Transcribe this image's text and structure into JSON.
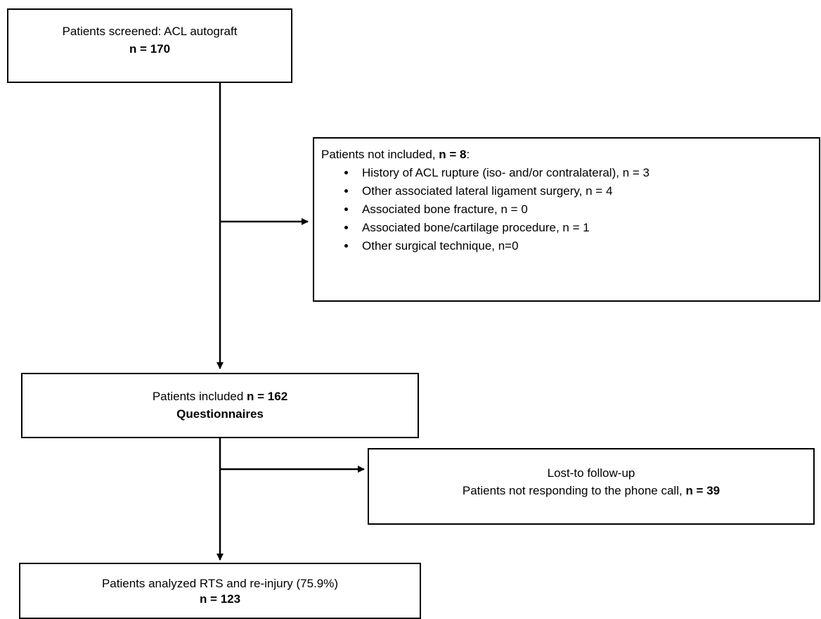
{
  "nodes": [
    {
      "label": "Patients screened: ACL autograft",
      "count": "n = 170"
    },
    {
      "label": "Patients not included,",
      "count": "n = 8",
      "suffix": ":",
      "items": [
        "History of ACL rupture (iso- and/or contralateral), n = 3",
        "Other associated lateral ligament surgery, n = 4",
        "Associated bone fracture, n = 0",
        "Associated bone/cartilage procedure, n = 1",
        "Other surgical technique, n=0"
      ]
    },
    {
      "label": "Patients included",
      "count": "n = 162",
      "subtitle": "Questionnaires"
    },
    {
      "title": "Lost-to follow-up",
      "label": "Patients not responding to the phone call,",
      "count": "n = 39"
    },
    {
      "label": "Patients analyzed RTS and re-injury (75.9%)",
      "count": "n = 123"
    }
  ]
}
